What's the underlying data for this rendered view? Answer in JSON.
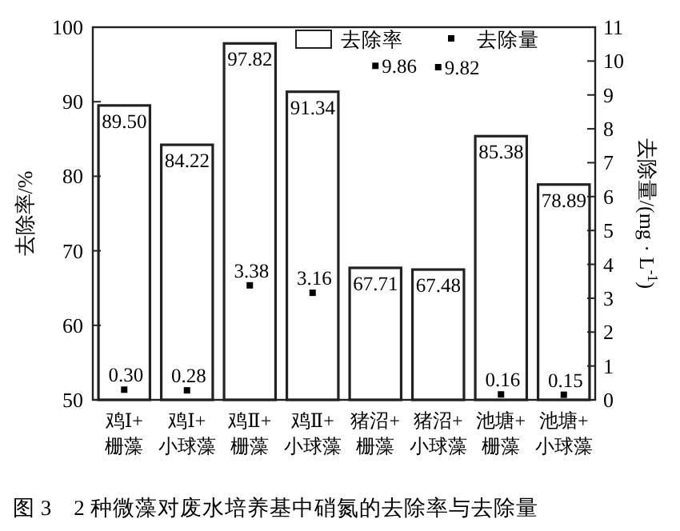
{
  "chart_data": {
    "type": "bar",
    "categories": [
      "鸡Ⅰ+\n栅藻",
      "鸡Ⅰ+\n小球藻",
      "鸡Ⅱ+\n栅藻",
      "鸡Ⅱ+\n小球藻",
      "猪沼+\n栅藻",
      "猪沼+\n小球藻",
      "池塘+\n栅藻",
      "池塘+\n小球藻"
    ],
    "series": [
      {
        "name": "去除率",
        "color": "#ffffff",
        "values": [
          89.5,
          84.22,
          97.82,
          91.34,
          67.71,
          67.48,
          85.38,
          78.89
        ],
        "value_labels": [
          "89.50",
          "84.22",
          "97.82",
          "91.34",
          "67.71",
          "67.48",
          "85.38",
          "78.89"
        ]
      },
      {
        "name": "去除量",
        "type": "scatter",
        "axis": "y2",
        "color": "#000000",
        "marker": "square",
        "values": [
          0.3,
          0.28,
          3.38,
          3.16,
          9.86,
          9.82,
          0.16,
          0.15
        ],
        "value_labels": [
          "0.30",
          "0.28",
          "3.38",
          "3.16",
          "9.86",
          "9.82",
          "0.16",
          "0.15"
        ]
      }
    ],
    "ylim": [
      50,
      100
    ],
    "yticks": [
      50,
      60,
      70,
      80,
      90,
      100
    ],
    "y2lim": [
      0,
      11
    ],
    "y2ticks": [
      0,
      1,
      2,
      3,
      4,
      5,
      6,
      7,
      8,
      9,
      10,
      11
    ],
    "ylabel": "去除率/%",
    "y2label": "去除量/(mg · L$^{-1}$)",
    "legend": "top right",
    "grid": false,
    "annotations": [
      "图 3　2 种微藻对废水培养基中硝氮的去除率与去除量"
    ]
  }
}
